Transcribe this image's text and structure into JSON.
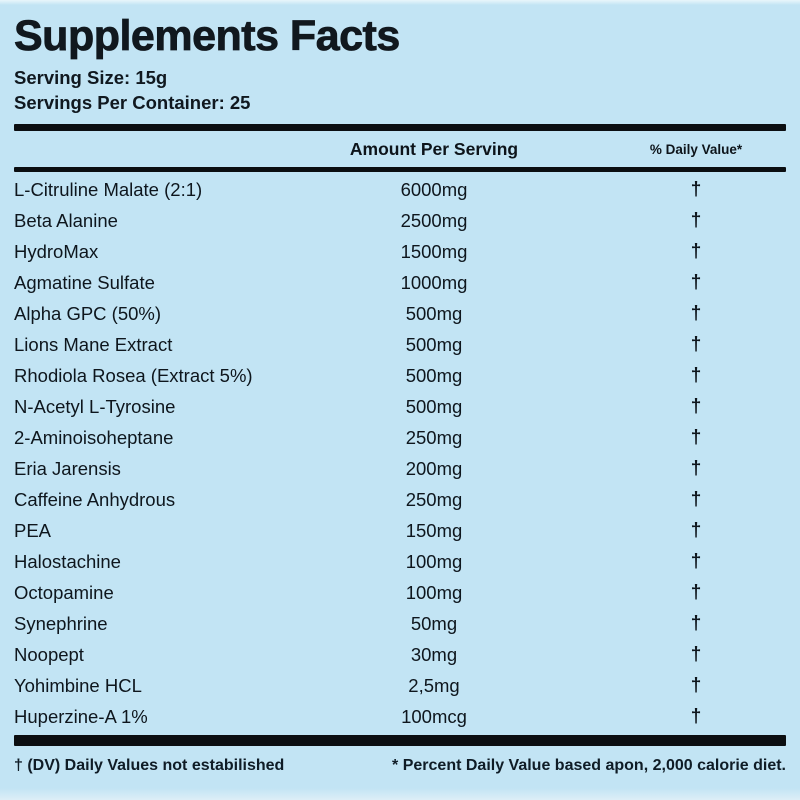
{
  "title": "Supplements Facts",
  "serving_info": {
    "serving_size": "Serving Size: 15g",
    "servings_per_container": "Servings Per Container: 25"
  },
  "table": {
    "headers": {
      "amount": "Amount Per Serving",
      "daily_value": "% Daily Value*"
    },
    "rows": [
      {
        "name": "L-Citruline Malate (2:1)",
        "amount": "6000mg",
        "daily_value": "†"
      },
      {
        "name": "Beta Alanine",
        "amount": "2500mg",
        "daily_value": "†"
      },
      {
        "name": "HydroMax",
        "amount": "1500mg",
        "daily_value": "†"
      },
      {
        "name": "Agmatine Sulfate",
        "amount": "1000mg",
        "daily_value": "†"
      },
      {
        "name": "Alpha GPC (50%)",
        "amount": "500mg",
        "daily_value": "†"
      },
      {
        "name": "Lions Mane Extract",
        "amount": "500mg",
        "daily_value": "†"
      },
      {
        "name": "Rhodiola Rosea (Extract 5%)",
        "amount": "500mg",
        "daily_value": "†"
      },
      {
        "name": "N-Acetyl L-Tyrosine",
        "amount": "500mg",
        "daily_value": "†"
      },
      {
        "name": "2-Aminoisoheptane",
        "amount": "250mg",
        "daily_value": "†"
      },
      {
        "name": "Eria Jarensis",
        "amount": "200mg",
        "daily_value": "†"
      },
      {
        "name": "Caffeine Anhydrous",
        "amount": "250mg",
        "daily_value": "†"
      },
      {
        "name": "PEA",
        "amount": "150mg",
        "daily_value": "†"
      },
      {
        "name": "Halostachine",
        "amount": "100mg",
        "daily_value": "†"
      },
      {
        "name": "Octopamine",
        "amount": "100mg",
        "daily_value": "†"
      },
      {
        "name": "Synephrine",
        "amount": "50mg",
        "daily_value": "†"
      },
      {
        "name": "Noopept",
        "amount": "30mg",
        "daily_value": "†"
      },
      {
        "name": "Yohimbine HCL",
        "amount": "2,5mg",
        "daily_value": "†"
      },
      {
        "name": "Huperzine-A 1%",
        "amount": "100mcg",
        "daily_value": "†"
      }
    ]
  },
  "footnotes": {
    "dv_note": "† (DV) Daily Values not estabilished",
    "percent_note": "* Percent Daily Value based apon, 2,000 calorie diet."
  },
  "colors": {
    "background": "#c2e4f4",
    "text": "#0e161d",
    "rule": "#0b0e11"
  }
}
